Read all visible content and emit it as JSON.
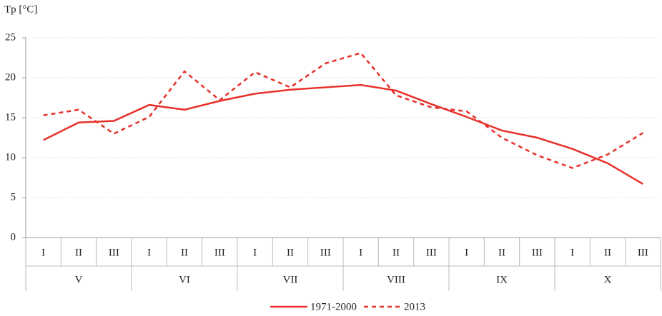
{
  "chart_data": {
    "type": "line",
    "y_label": "Tp [°C]",
    "categories": [
      "I",
      "II",
      "III",
      "I",
      "II",
      "III",
      "I",
      "II",
      "III",
      "I",
      "II",
      "III",
      "I",
      "II",
      "III",
      "I",
      "II",
      "III"
    ],
    "category_groups": [
      "V",
      "VI",
      "VII",
      "VIII",
      "IX",
      "X"
    ],
    "series": [
      {
        "name": "1971-2000",
        "color": "#e8302a",
        "style": "solid",
        "values": [
          12.2,
          14.4,
          14.6,
          16.6,
          16.0,
          17.1,
          18.0,
          18.5,
          18.8,
          19.1,
          18.4,
          16.7,
          15.1,
          13.4,
          12.5,
          11.1,
          9.3,
          6.7
        ]
      },
      {
        "name": "2013",
        "color": "#e8302a",
        "style": "dashed",
        "values": [
          15.3,
          16.0,
          13.0,
          15.1,
          20.8,
          17.2,
          20.7,
          18.8,
          21.8,
          23.1,
          17.8,
          16.3,
          15.8,
          12.5,
          10.3,
          8.7,
          10.4,
          13.1
        ]
      }
    ],
    "ylim": [
      0,
      25
    ],
    "yticks": [
      0,
      5,
      10,
      15,
      20,
      25
    ],
    "grid": true,
    "legend": "bottom"
  }
}
